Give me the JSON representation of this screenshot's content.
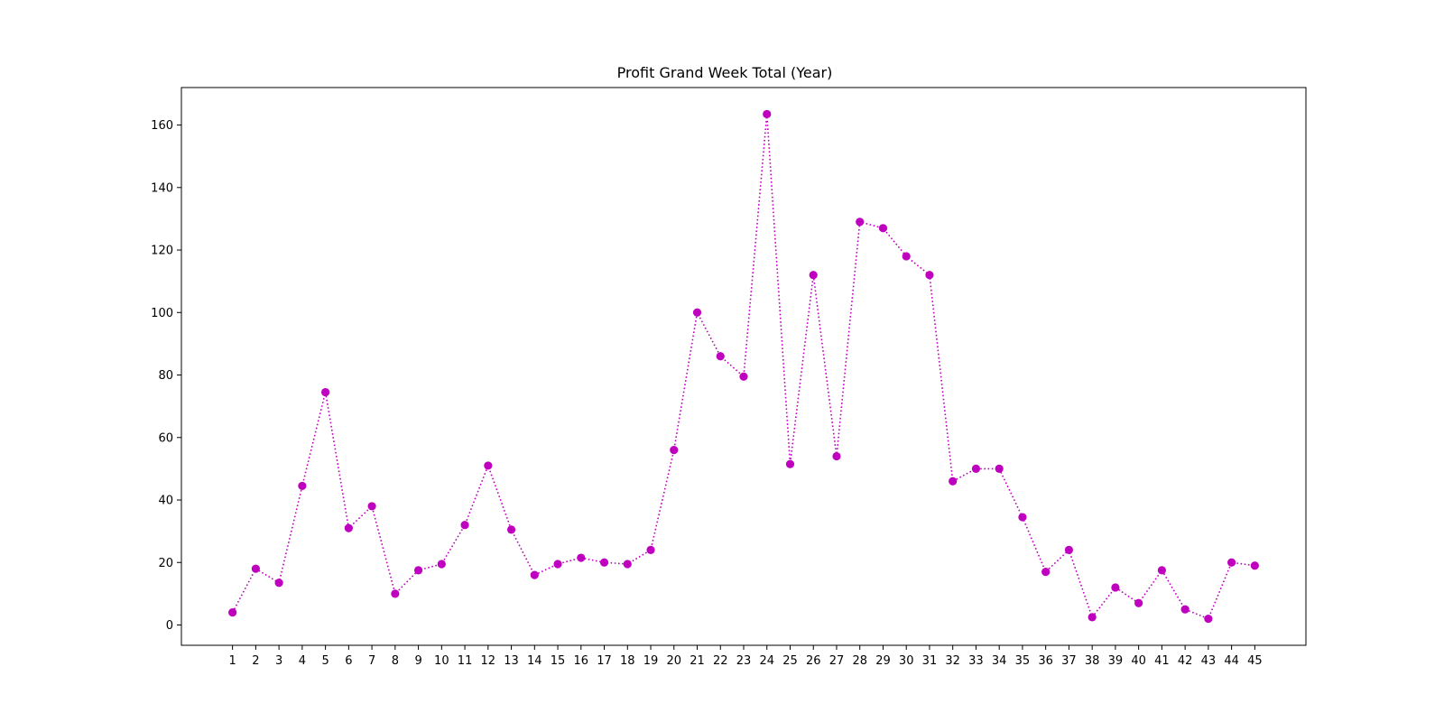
{
  "chart_data": {
    "type": "line",
    "title": "Profit Grand Week Total (Year)",
    "xlabel": "",
    "ylabel": "",
    "x": [
      1,
      2,
      3,
      4,
      5,
      6,
      7,
      8,
      9,
      10,
      11,
      12,
      13,
      14,
      15,
      16,
      17,
      18,
      19,
      20,
      21,
      22,
      23,
      24,
      25,
      26,
      27,
      28,
      29,
      30,
      31,
      32,
      33,
      34,
      35,
      36,
      37,
      38,
      39,
      40,
      41,
      42,
      43,
      44,
      45
    ],
    "series": [
      {
        "values": [
          4,
          18,
          13.5,
          44.5,
          74.5,
          31,
          38,
          10,
          17.5,
          19.5,
          32,
          51,
          30.5,
          16,
          19.5,
          21.5,
          20,
          19.5,
          24,
          56,
          100,
          86,
          79.5,
          163.5,
          51.5,
          112,
          54,
          129,
          127,
          118,
          112,
          46,
          50,
          50,
          34.5,
          17,
          24,
          2.5,
          12,
          7,
          17.5,
          5,
          2,
          20,
          19
        ],
        "color": "#bf00bf",
        "line_style": "dotted",
        "marker": "circle"
      }
    ],
    "xlim": [
      -1.2,
      47.2
    ],
    "ylim": [
      -6.5,
      172
    ],
    "yticks": [
      0,
      20,
      40,
      60,
      80,
      100,
      120,
      140,
      160
    ],
    "xticks": [
      1,
      2,
      3,
      4,
      5,
      6,
      7,
      8,
      9,
      10,
      11,
      12,
      13,
      14,
      15,
      16,
      17,
      18,
      19,
      20,
      21,
      22,
      23,
      24,
      25,
      26,
      27,
      28,
      29,
      30,
      31,
      32,
      33,
      34,
      35,
      36,
      37,
      38,
      39,
      40,
      41,
      42,
      43,
      44,
      45
    ],
    "grid": false,
    "legend": "none"
  }
}
